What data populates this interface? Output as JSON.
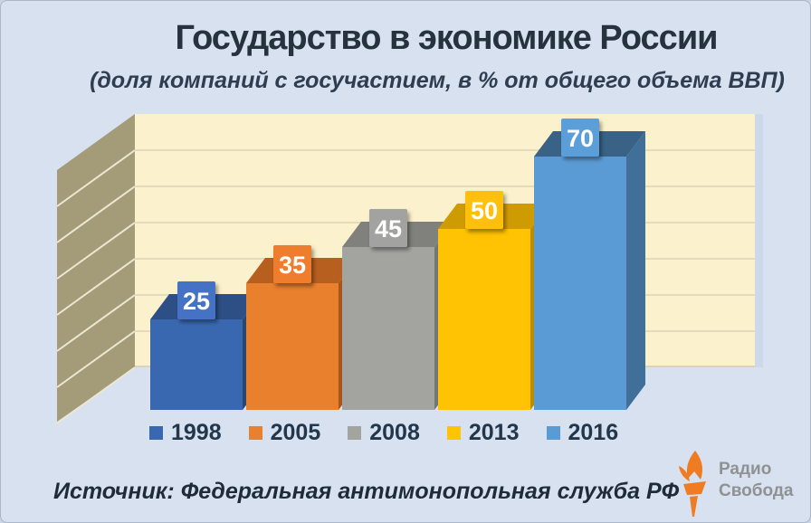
{
  "page": {
    "background": "#d7e1ef",
    "frame_border": "#aab7c9"
  },
  "header": {
    "title": "Государство в экономике России",
    "subtitle": "(доля компаний с госучастием, в % от общего объема ВВП)",
    "title_color": "#26323e",
    "subtitle_color": "#2e3d50"
  },
  "chart_data": {
    "type": "bar",
    "style": "3d-column",
    "title": "Государство в экономике России",
    "subtitle": "(доля компаний с госучастием, в % от общего объема ВВП)",
    "categories": [
      "1998",
      "2005",
      "2008",
      "2013",
      "2016"
    ],
    "values": [
      25,
      35,
      45,
      50,
      70
    ],
    "unit": "% от общего объема ВВП",
    "ylim": [
      0,
      80
    ],
    "gridline_step": 10,
    "grid": true,
    "legend_position": "bottom",
    "value_labels_on": true,
    "colors": [
      {
        "front": "#3a68b0",
        "top": "#2d4f85",
        "side": "#29476f",
        "box": "#4472c4"
      },
      {
        "front": "#e8802e",
        "top": "#b65f1f",
        "side": "#a65618",
        "box": "#ee7d2d"
      },
      {
        "front": "#a3a3a0",
        "top": "#80807c",
        "side": "#757571",
        "box": "#a2a2a0"
      },
      {
        "front": "#ffc303",
        "top": "#cf9b02",
        "side": "#ba8c00",
        "box": "#ffc00e"
      },
      {
        "front": "#5b9bd5",
        "top": "#396286",
        "side": "#40709a",
        "box": "#5b9fd8"
      }
    ],
    "walls": {
      "back": "#fbf1cc",
      "side": "#a49c78",
      "side_lines": "#ece7d4",
      "gridline": "#e4dbbd",
      "bottom_line": "#ddd4b6",
      "shadow": "#cbd7e8"
    },
    "value_label_text_color": "#ffffff",
    "legend_text_color": "#22364c"
  },
  "footer": {
    "source": "Источник: Федеральная антимонопольная служба РФ",
    "color": "#1f2b38"
  },
  "logo": {
    "line1": "Радио",
    "line2": "Свобода",
    "torch_color": "#ef7b22",
    "text_color": "#8f9193"
  }
}
